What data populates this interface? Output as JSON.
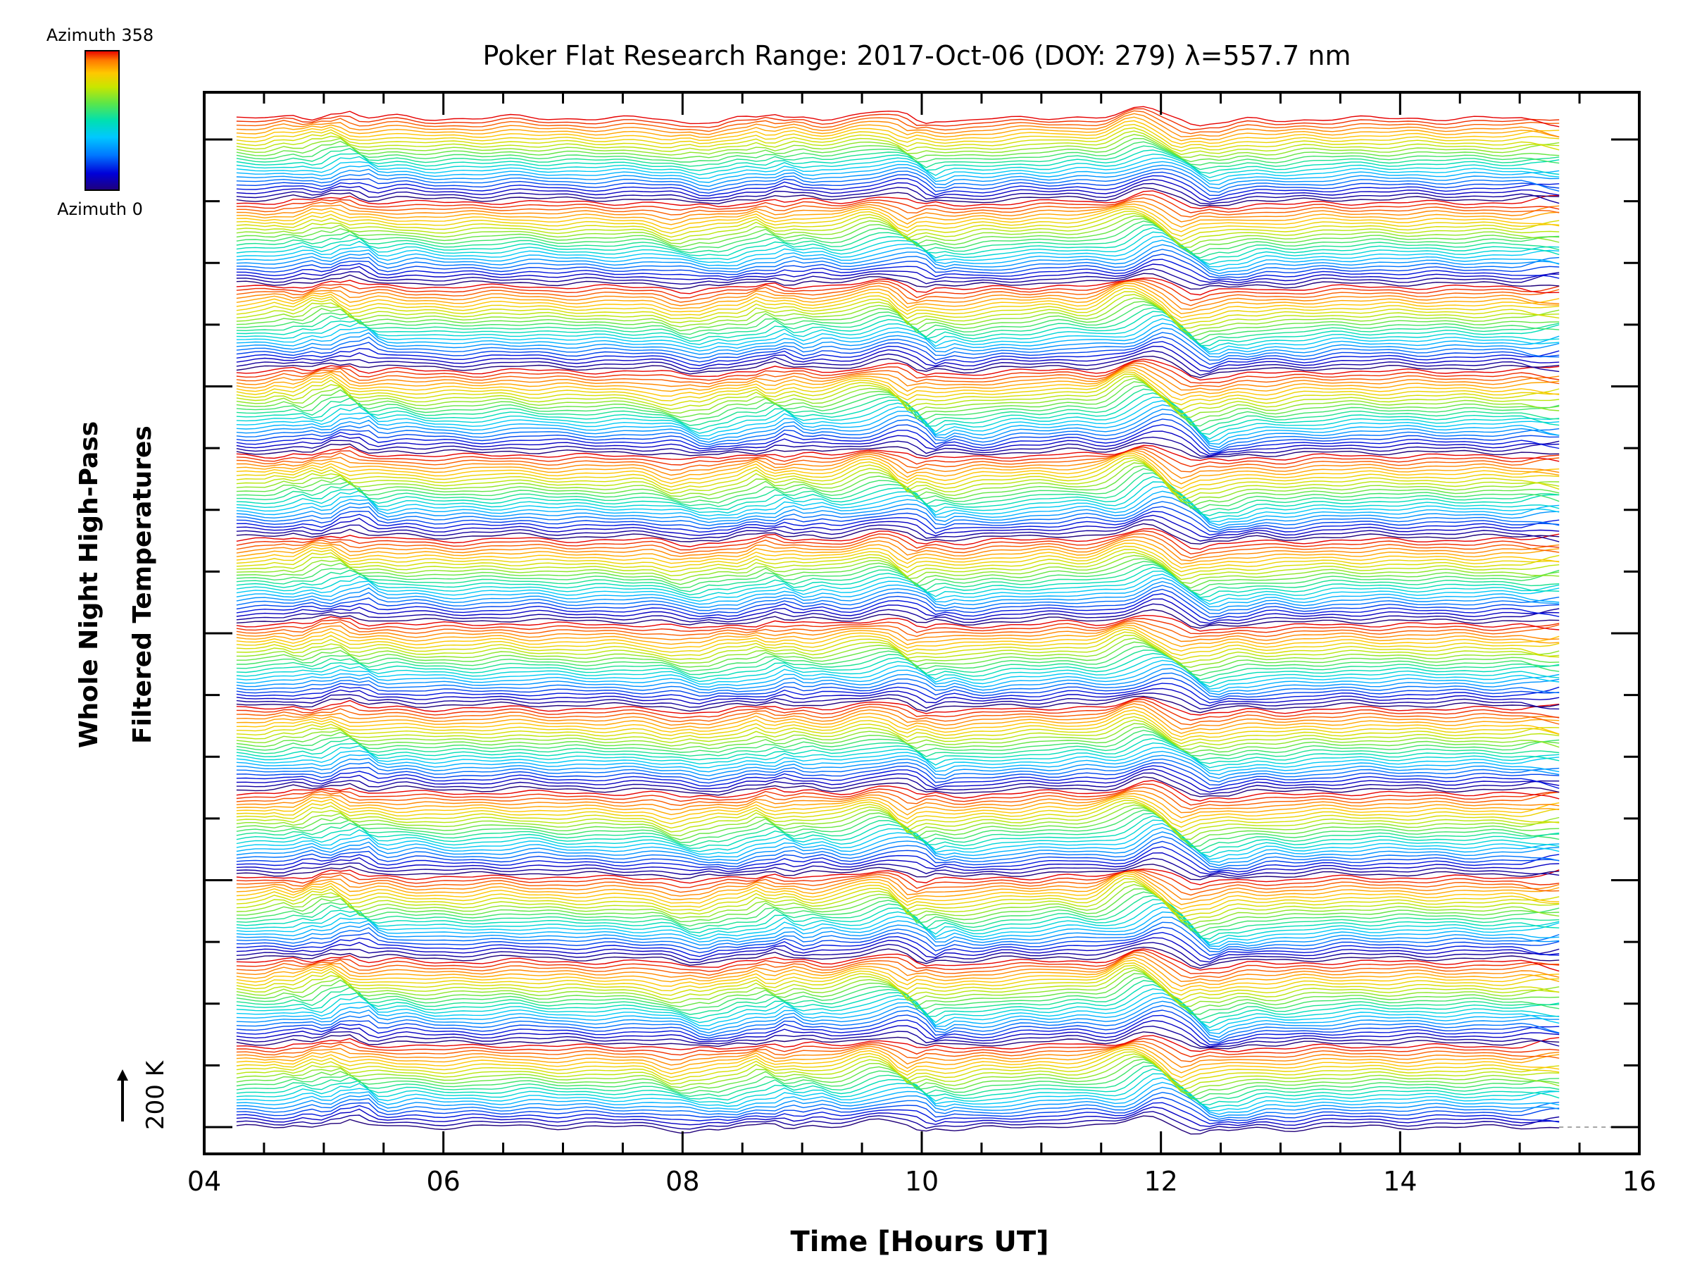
{
  "chart_data": {
    "type": "line",
    "title": "Poker Flat Research Range: 2017-Oct-06 (DOY: 279) λ=557.7 nm",
    "xlabel": "Time [Hours UT]",
    "ylabel_line1": "Whole Night High-Pass",
    "ylabel_line2": "Filtered Temperatures",
    "xlim": [
      4,
      16
    ],
    "x_ticks": [
      "04",
      "06",
      "08",
      "10",
      "12",
      "14",
      "16"
    ],
    "x_minor_step": 0.5,
    "data_x_range": [
      4.27,
      15.33
    ],
    "y_ticks_major": 4,
    "y_ticks_minor_per_major": 3,
    "scale_bar": {
      "label": "200 K"
    },
    "colorbar": {
      "top_label": "Azimuth 358",
      "bottom_label": "Azimuth 0",
      "colormap": [
        "#20007a",
        "#0000d8",
        "#0077ff",
        "#00c8ff",
        "#00e0b0",
        "#5ae64a",
        "#c8e600",
        "#ffc800",
        "#ff7a00",
        "#e60000"
      ]
    },
    "rings": 12,
    "series_count": 288,
    "series_description": "Stacked temperature perturbation traces, one per azimuth/zenith sample, offset vertically; colour encodes azimuth 0–358.",
    "reference_series": {
      "name": "",
      "x": [
        4.27,
        4.5,
        5.0,
        5.25,
        5.5,
        6.0,
        7.0,
        8.0,
        8.3,
        9.0,
        9.8,
        10.0,
        10.3,
        11.0,
        11.5,
        11.9,
        12.2,
        12.5,
        13.0,
        14.0,
        15.0,
        15.33
      ],
      "y_K": [
        0,
        -5,
        2,
        25,
        0,
        5,
        2,
        0,
        -20,
        8,
        15,
        40,
        -10,
        5,
        10,
        60,
        10,
        -40,
        -20,
        0,
        0,
        0
      ]
    }
  }
}
